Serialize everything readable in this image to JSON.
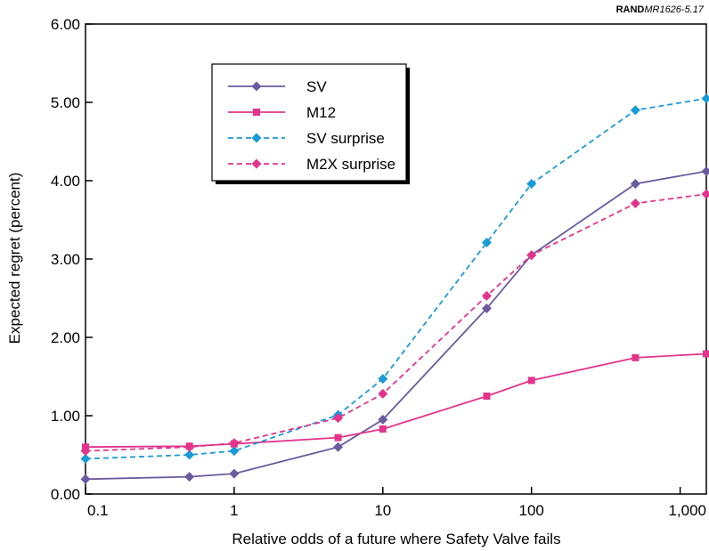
{
  "source_label": {
    "bold": "RAND",
    "italic": "MR1626-5.17"
  },
  "chart_data": {
    "type": "line",
    "xlabel": "Relative odds of a future where Safety Valve fails",
    "ylabel": "Expected regret (percent)",
    "x_scale": "log",
    "xlim": [
      0.1,
      1500
    ],
    "ylim": [
      0,
      6
    ],
    "x_ticks": [
      {
        "value": 0.1,
        "label": "0.1"
      },
      {
        "value": 1,
        "label": "1"
      },
      {
        "value": 10,
        "label": "10"
      },
      {
        "value": 100,
        "label": "100"
      },
      {
        "value": 1000,
        "label": "1,000"
      }
    ],
    "y_ticks": [
      {
        "value": 0,
        "label": "0.00"
      },
      {
        "value": 1,
        "label": "1.00"
      },
      {
        "value": 2,
        "label": "2.00"
      },
      {
        "value": 3,
        "label": "3.00"
      },
      {
        "value": 4,
        "label": "4.00"
      },
      {
        "value": 5,
        "label": "5.00"
      },
      {
        "value": 6,
        "label": "6.00"
      }
    ],
    "grid": false,
    "legend_position": "top-left",
    "x": [
      0.1,
      0.5,
      1,
      5,
      10,
      50,
      100,
      500,
      1500
    ],
    "series": [
      {
        "name": "SV",
        "color": "#6b5b9e",
        "marker": "diamond",
        "dash": "solid",
        "values": [
          0.19,
          0.22,
          0.26,
          0.6,
          0.95,
          2.37,
          3.05,
          3.96,
          4.12
        ]
      },
      {
        "name": "M12",
        "color": "#e3348c",
        "marker": "square",
        "dash": "solid",
        "values": [
          0.6,
          0.61,
          0.64,
          0.72,
          0.83,
          1.25,
          1.45,
          1.74,
          1.79
        ]
      },
      {
        "name": "SV surprise",
        "color": "#1a9ad6",
        "marker": "diamond",
        "dash": "dashed",
        "values": [
          0.45,
          0.5,
          0.55,
          1.01,
          1.47,
          3.21,
          3.96,
          4.9,
          5.05
        ]
      },
      {
        "name": "M2X surprise",
        "color": "#e3348c",
        "marker": "diamond",
        "dash": "dashed",
        "values": [
          0.55,
          0.6,
          0.65,
          0.97,
          1.28,
          2.53,
          3.05,
          3.71,
          3.83
        ]
      }
    ]
  }
}
